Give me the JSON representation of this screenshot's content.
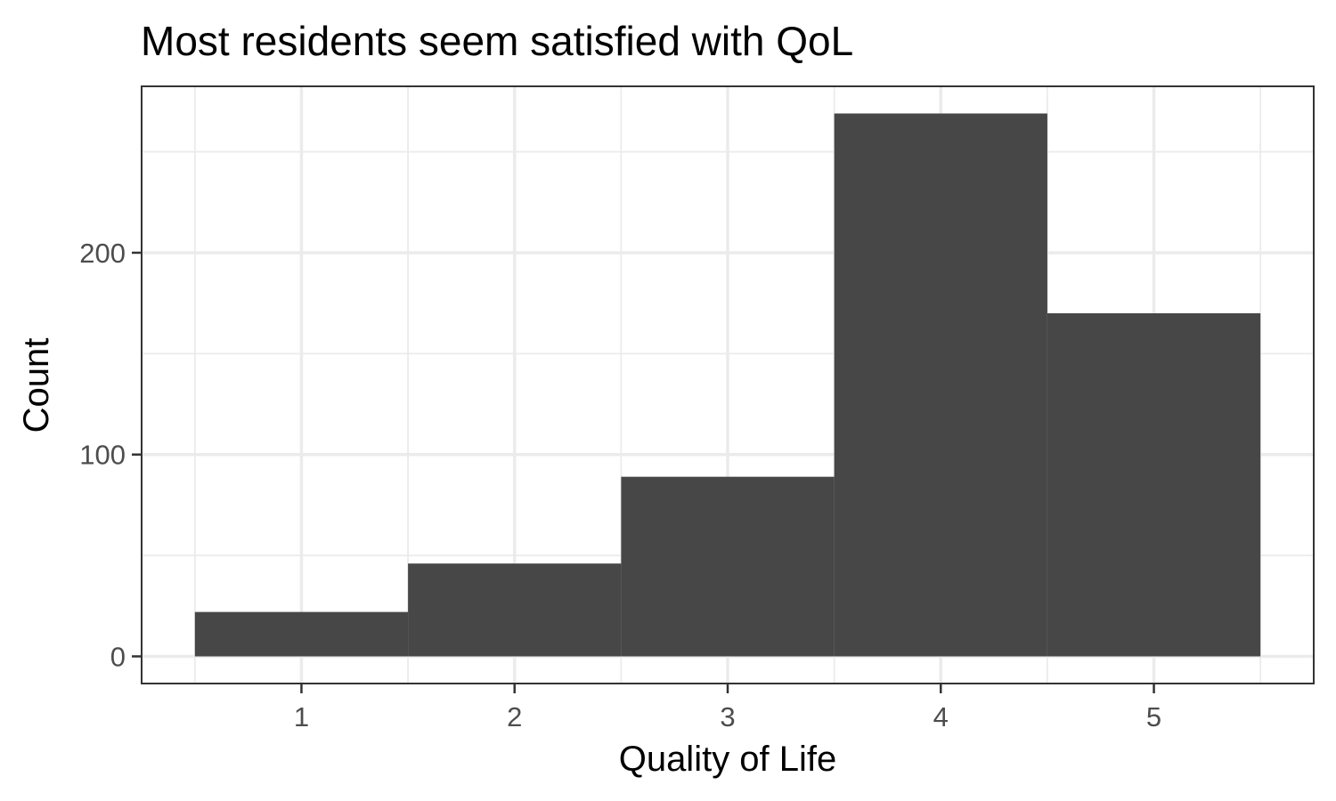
{
  "chart_data": {
    "type": "bar",
    "title": "Most residents seem satisfied with QoL",
    "xlabel": "Quality of Life",
    "ylabel": "Count",
    "categories": [
      "1",
      "2",
      "3",
      "4",
      "5"
    ],
    "x": [
      1,
      2,
      3,
      4,
      5
    ],
    "values": [
      22,
      46,
      89,
      269,
      170
    ],
    "xlim": [
      0.25,
      5.75
    ],
    "ylim": [
      -13.45,
      282.45
    ],
    "xticks": [
      "1",
      "2",
      "3",
      "4",
      "5"
    ],
    "yticks": [
      "0",
      "100",
      "200"
    ],
    "ytick_values": [
      0,
      100,
      200
    ],
    "grid": true,
    "legend": "none",
    "colors": {
      "bar": "#474747",
      "grid": "#ebebeb",
      "border": "#333333"
    }
  }
}
